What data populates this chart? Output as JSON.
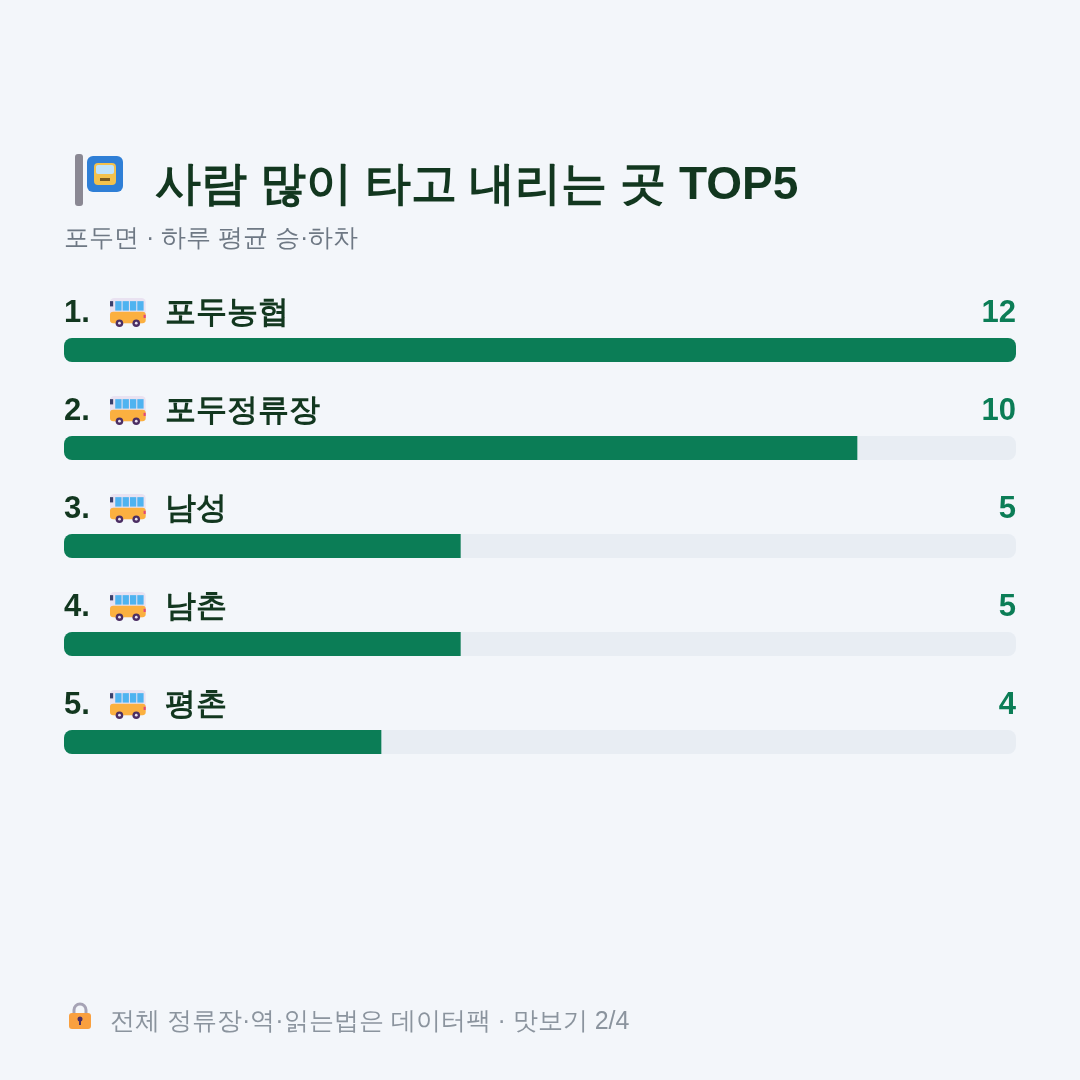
{
  "chart_data": {
    "type": "bar",
    "orientation": "horizontal",
    "title": "사람 많이 타고 내리는 곳 TOP5",
    "subtitle": "포두면 · 하루 평균 승·하차",
    "categories": [
      "1. 포두농협",
      "2. 포두정류장",
      "3. 남성",
      "4. 남촌",
      "5. 평촌"
    ],
    "values": [
      12,
      10,
      5,
      5,
      4
    ],
    "color": "#0b7d56",
    "data_labels": true,
    "annotations": [
      "전체 정류장·역·읽는법은 데이터팩 · 맛보기 2/4"
    ]
  }
}
